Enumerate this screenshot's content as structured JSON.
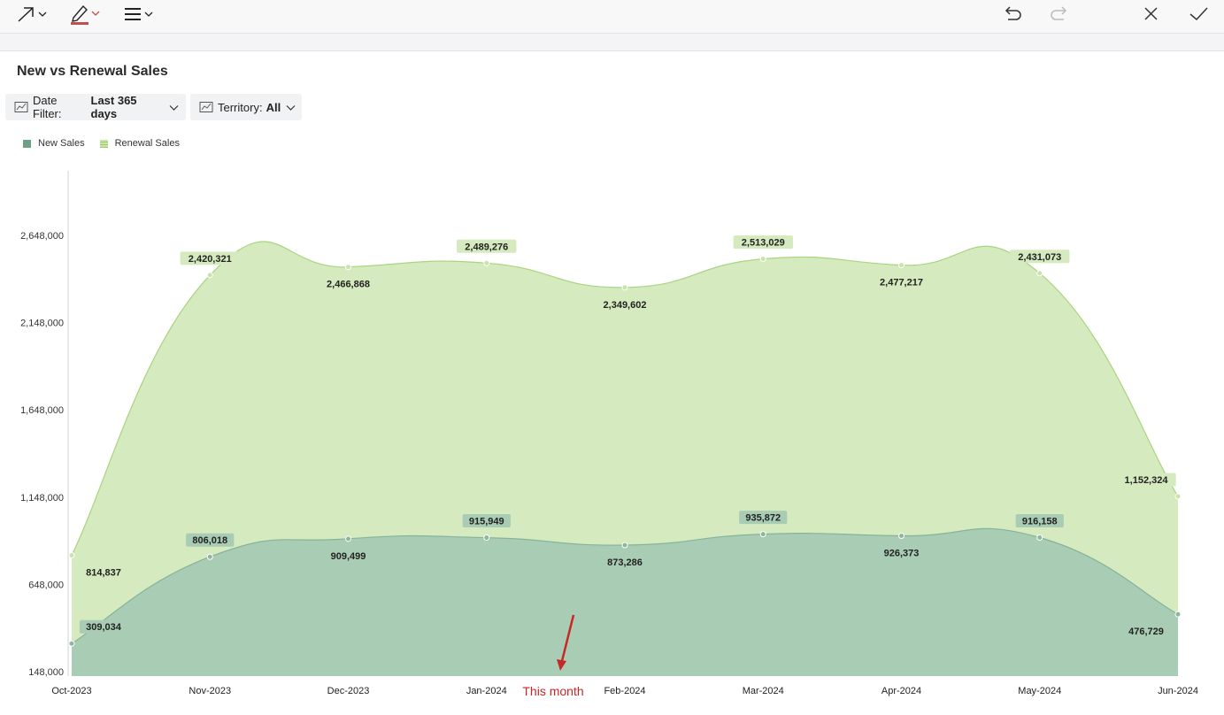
{
  "toolbar": {
    "tools": [
      "arrow-tool-icon",
      "pen-tool-icon",
      "line-weight-icon"
    ],
    "actions": [
      "undo-icon",
      "redo-icon",
      "close-icon",
      "confirm-check-icon"
    ],
    "pen_color": "#c0504d"
  },
  "card": {
    "title": "New vs Renewal Sales"
  },
  "filters": {
    "date_label": "Date Filter:",
    "date_value": "Last 365 days",
    "territory_label": "Territory:",
    "territory_value": "All"
  },
  "annotation": {
    "text": "This month",
    "color": "#c62828"
  },
  "chart_data": {
    "type": "area",
    "stacked": true,
    "title": "New vs Renewal Sales",
    "categories": [
      "Oct-2023",
      "Nov-2023",
      "Dec-2023",
      "Jan-2024",
      "Feb-2024",
      "Mar-2024",
      "Apr-2024",
      "May-2024",
      "Jun-2024"
    ],
    "series": [
      {
        "name": "New Sales",
        "color": "#a9ccb4",
        "line_color": "#86b39a",
        "values": [
          309034,
          806018,
          909499,
          915949,
          873286,
          935872,
          926373,
          916158,
          476729
        ],
        "labels": [
          "309,034",
          "806,018",
          "909,499",
          "915,949",
          "873,286",
          "935,872",
          "926,373",
          "916,158",
          "476,729"
        ]
      },
      {
        "name": "Renewal Sales",
        "color": "#d5eabf",
        "line_color": "#a8d581",
        "values": [
          505803,
          1614303,
          1557369,
          1573327,
          1476316,
          1577157,
          1550844,
          1514915,
          675595
        ],
        "stacked_totals": [
          814837,
          2420321,
          2466868,
          2489276,
          2349602,
          2513029,
          2477217,
          2431073,
          1152324
        ],
        "labels": [
          "814,837",
          "2,420,321",
          "2,466,868",
          "2,489,276",
          "2,349,602",
          "2,513,029",
          "2,477,217",
          "2,431,073",
          "1,152,324"
        ]
      }
    ],
    "y_ticks": [
      148000,
      648000,
      1148000,
      1648000,
      2148000,
      2648000
    ],
    "y_tick_labels": [
      "148,000",
      "648,000",
      "1,148,000",
      "1,648,000",
      "2,148,000",
      "2,648,000"
    ],
    "ylim": [
      148000,
      2648000
    ],
    "grid": false,
    "legend_position": "top-left"
  }
}
